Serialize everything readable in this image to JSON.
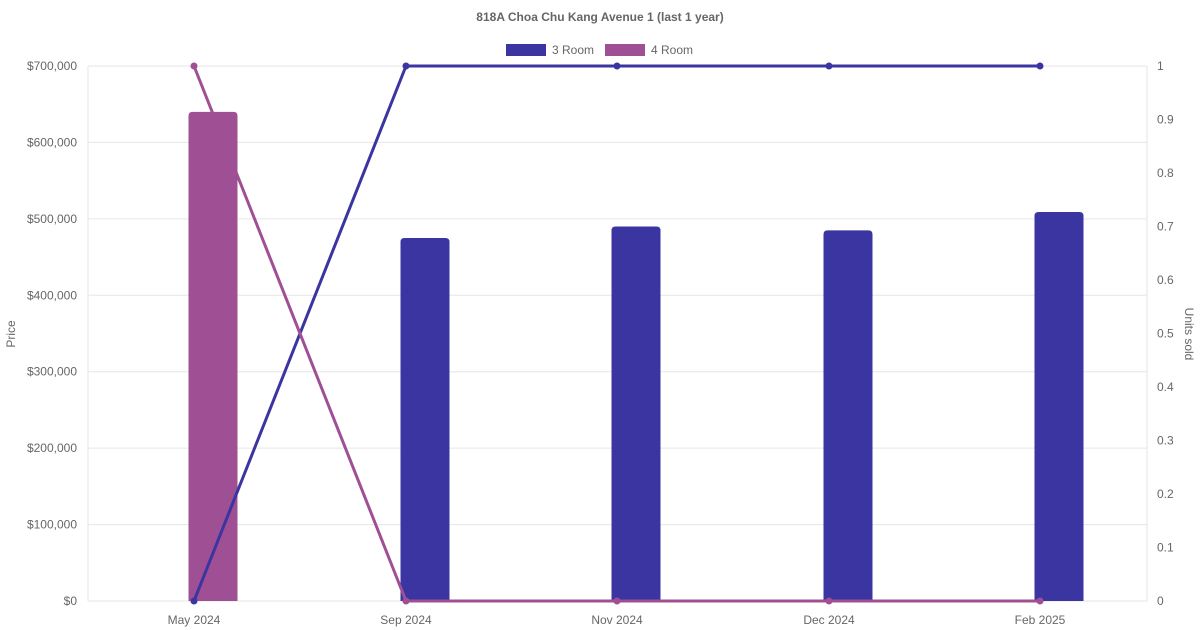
{
  "chart_data": {
    "type": "bar",
    "title": "818A Choa Chu Kang Avenue 1 (last 1 year)",
    "categories": [
      "May 2024",
      "Sep 2024",
      "Nov 2024",
      "Dec 2024",
      "Feb 2025"
    ],
    "ylabel": "Price",
    "y2label": "Units sold",
    "ylim": [
      0,
      700000
    ],
    "y2lim": [
      0,
      1
    ],
    "y_ticks": [
      "$0",
      "$100,000",
      "$200,000",
      "$300,000",
      "$400,000",
      "$500,000",
      "$600,000",
      "$700,000"
    ],
    "y2_ticks": [
      "0",
      "0.1",
      "0.2",
      "0.3",
      "0.4",
      "0.5",
      "0.6",
      "0.7",
      "0.8",
      "0.9",
      "1"
    ],
    "grid": true,
    "legend_position": "top",
    "series": [
      {
        "name": "3 Room",
        "color": "#3a35a0",
        "price_values": [
          null,
          475000,
          490000,
          485000,
          509000
        ],
        "units_sold": [
          0,
          1,
          1,
          1,
          1
        ]
      },
      {
        "name": "4 Room",
        "color": "#9f5094",
        "price_values": [
          640000,
          null,
          null,
          null,
          null
        ],
        "units_sold": [
          1,
          0,
          0,
          0,
          0
        ]
      }
    ]
  }
}
